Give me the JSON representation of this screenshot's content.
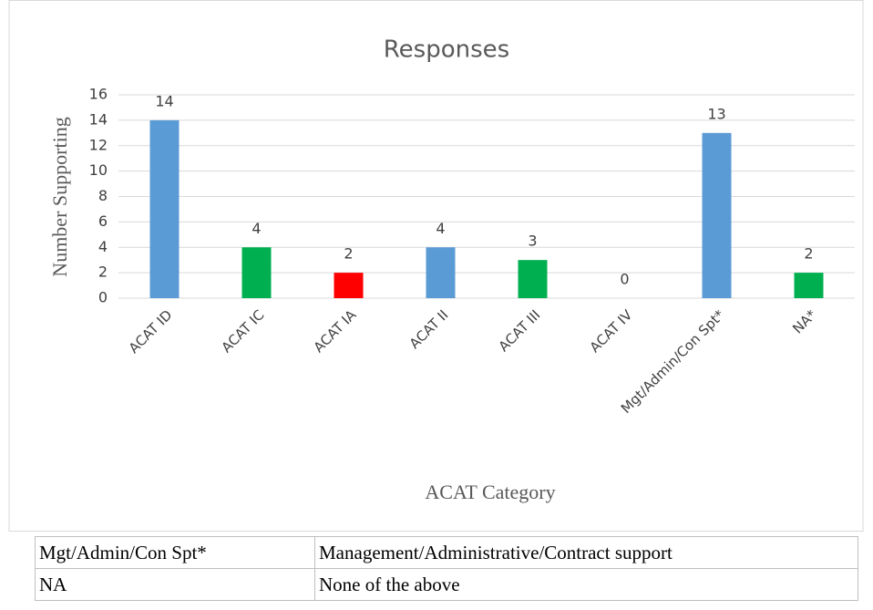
{
  "chart_data": {
    "type": "bar",
    "title": "Responses",
    "x_label": "ACAT Category",
    "y_label": "Number Supporting",
    "categories": [
      "ACAT ID",
      "ACAT IC",
      "ACAT IA",
      "ACAT II",
      "ACAT III",
      "ACAT IV",
      "Mgt/Admin/Con Spt*",
      "NA*"
    ],
    "values": [
      14,
      4,
      2,
      4,
      3,
      0,
      13,
      2
    ],
    "colors": [
      "#5b9bd5",
      "#00b050",
      "#ff0000",
      "#5b9bd5",
      "#00b050",
      "#5b9bd5",
      "#5b9bd5",
      "#00b050"
    ],
    "ylim": [
      0,
      16
    ],
    "yticks": [
      0,
      2,
      4,
      6,
      8,
      10,
      12,
      14,
      16
    ],
    "grid": true
  },
  "table": {
    "rows": [
      [
        "Mgt/Admin/Con Spt*",
        "Management/Administrative/Contract support"
      ],
      [
        "NA",
        "None of the above"
      ]
    ]
  }
}
